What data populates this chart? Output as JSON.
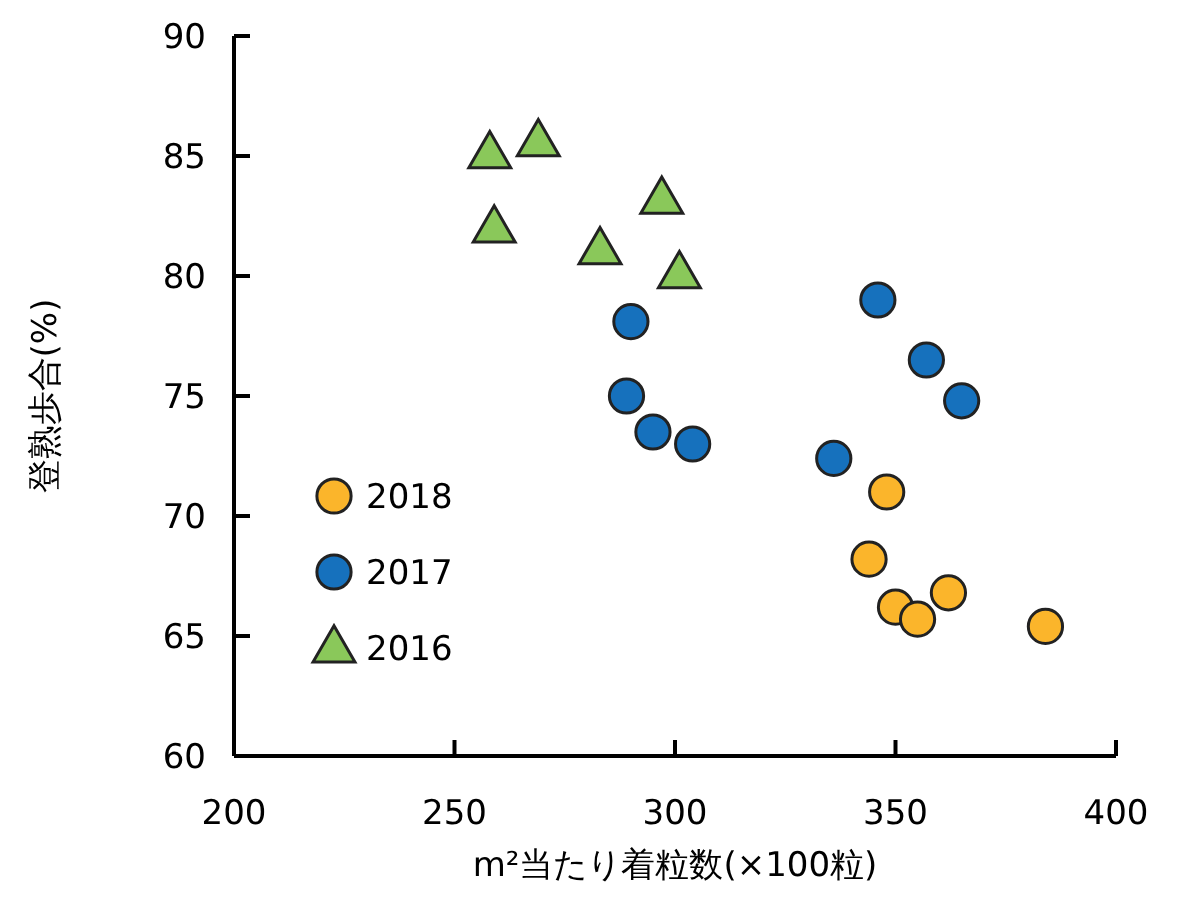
{
  "chart_data": {
    "type": "scatter",
    "xlabel": "m²当たり着粒数(×100粒)",
    "ylabel": "登熟歩合(%)",
    "xlim": [
      200,
      400
    ],
    "xticks": [
      200,
      250,
      300,
      350,
      400
    ],
    "ylim": [
      60,
      90
    ],
    "yticks": [
      60,
      65,
      70,
      75,
      80,
      85,
      90
    ],
    "grid": false,
    "legend": "bottom left",
    "series": [
      {
        "name": "2018",
        "color": "#fbb52b",
        "marker": "circle",
        "x": [
          348,
          344,
          350,
          355,
          362,
          384
        ],
        "values": [
          71.0,
          68.2,
          66.2,
          65.7,
          66.8,
          65.4
        ]
      },
      {
        "name": "2017",
        "color": "#1671bd",
        "marker": "circle",
        "x": [
          290,
          289,
          295,
          304,
          336,
          346,
          357,
          365
        ],
        "values": [
          78.1,
          75.0,
          73.5,
          73.0,
          72.4,
          79.0,
          76.5,
          74.8
        ]
      },
      {
        "name": "2016",
        "color": "#8ac85a",
        "marker": "triangle",
        "x": [
          258,
          269,
          259,
          283,
          297,
          301
        ],
        "values": [
          85.1,
          85.6,
          82.0,
          81.1,
          83.2,
          80.1
        ]
      }
    ]
  }
}
